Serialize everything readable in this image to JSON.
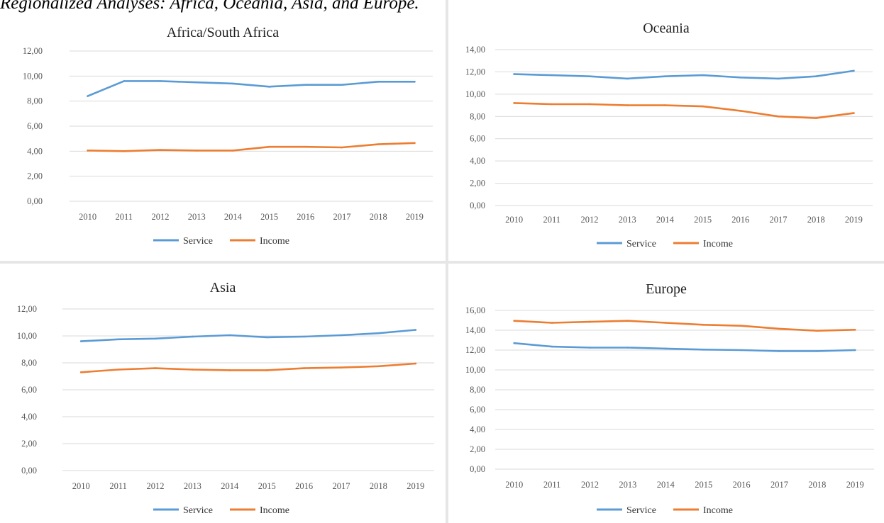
{
  "caption": "Regionalized Analyses: Africa, Oceania, Asia, and Europe.",
  "colors": {
    "service": "#5b9bd5",
    "income": "#ed7d31",
    "grid": "#d9d9d9",
    "tick": "#595959"
  },
  "chart_data": [
    {
      "type": "line",
      "title": "Africa/South Africa",
      "xlabel": "",
      "ylabel": "",
      "categories": [
        "2010",
        "2011",
        "2012",
        "2013",
        "2014",
        "2015",
        "2016",
        "2017",
        "2018",
        "2019"
      ],
      "y_ticks": [
        "0,00",
        "2,00",
        "4,00",
        "6,00",
        "8,00",
        "10,00",
        "12,00"
      ],
      "ylim": [
        0,
        12
      ],
      "grid": true,
      "legend": "bottom",
      "series": [
        {
          "name": "Service",
          "values": [
            8.4,
            9.6,
            9.6,
            9.5,
            9.4,
            9.15,
            9.3,
            9.3,
            9.55,
            9.55
          ]
        },
        {
          "name": "Income",
          "values": [
            4.05,
            4.0,
            4.1,
            4.05,
            4.05,
            4.35,
            4.35,
            4.3,
            4.55,
            4.65
          ]
        }
      ]
    },
    {
      "type": "line",
      "title": "Oceania",
      "xlabel": "",
      "ylabel": "",
      "categories": [
        "2010",
        "2011",
        "2012",
        "2013",
        "2014",
        "2015",
        "2016",
        "2017",
        "2018",
        "2019"
      ],
      "y_ticks": [
        "0,00",
        "2,00",
        "4,00",
        "6,00",
        "8,00",
        "10,00",
        "12,00",
        "14,00"
      ],
      "ylim": [
        0,
        14
      ],
      "grid": true,
      "legend": "bottom",
      "series": [
        {
          "name": "Service",
          "values": [
            11.8,
            11.7,
            11.6,
            11.4,
            11.6,
            11.7,
            11.5,
            11.4,
            11.6,
            12.1
          ]
        },
        {
          "name": "Income",
          "values": [
            9.2,
            9.1,
            9.1,
            9.0,
            9.0,
            8.9,
            8.5,
            8.0,
            7.85,
            8.3
          ]
        }
      ]
    },
    {
      "type": "line",
      "title": "Asia",
      "xlabel": "",
      "ylabel": "",
      "categories": [
        "2010",
        "2011",
        "2012",
        "2013",
        "2014",
        "2015",
        "2016",
        "2017",
        "2018",
        "2019"
      ],
      "y_ticks": [
        "0,00",
        "2,00",
        "4,00",
        "6,00",
        "8,00",
        "10,00",
        "12,00"
      ],
      "ylim": [
        0,
        12
      ],
      "grid": true,
      "legend": "bottom",
      "series": [
        {
          "name": "Service",
          "values": [
            9.6,
            9.75,
            9.8,
            9.95,
            10.05,
            9.9,
            9.95,
            10.05,
            10.2,
            10.45
          ]
        },
        {
          "name": "Income",
          "values": [
            7.3,
            7.5,
            7.6,
            7.5,
            7.45,
            7.45,
            7.6,
            7.65,
            7.75,
            7.95
          ]
        }
      ]
    },
    {
      "type": "line",
      "title": "Europe",
      "xlabel": "",
      "ylabel": "",
      "categories": [
        "2010",
        "2011",
        "2012",
        "2013",
        "2014",
        "2015",
        "2016",
        "2017",
        "2018",
        "2019"
      ],
      "y_ticks": [
        "0,00",
        "2,00",
        "4,00",
        "6,00",
        "8,00",
        "10,00",
        "12,00",
        "14,00",
        "16,00"
      ],
      "ylim": [
        0,
        16
      ],
      "grid": true,
      "legend": "bottom",
      "series": [
        {
          "name": "Service",
          "values": [
            12.7,
            12.35,
            12.25,
            12.25,
            12.15,
            12.05,
            12.0,
            11.9,
            11.9,
            12.0
          ]
        },
        {
          "name": "Income",
          "values": [
            14.95,
            14.75,
            14.85,
            14.95,
            14.75,
            14.55,
            14.45,
            14.15,
            13.95,
            14.05
          ]
        }
      ]
    }
  ]
}
